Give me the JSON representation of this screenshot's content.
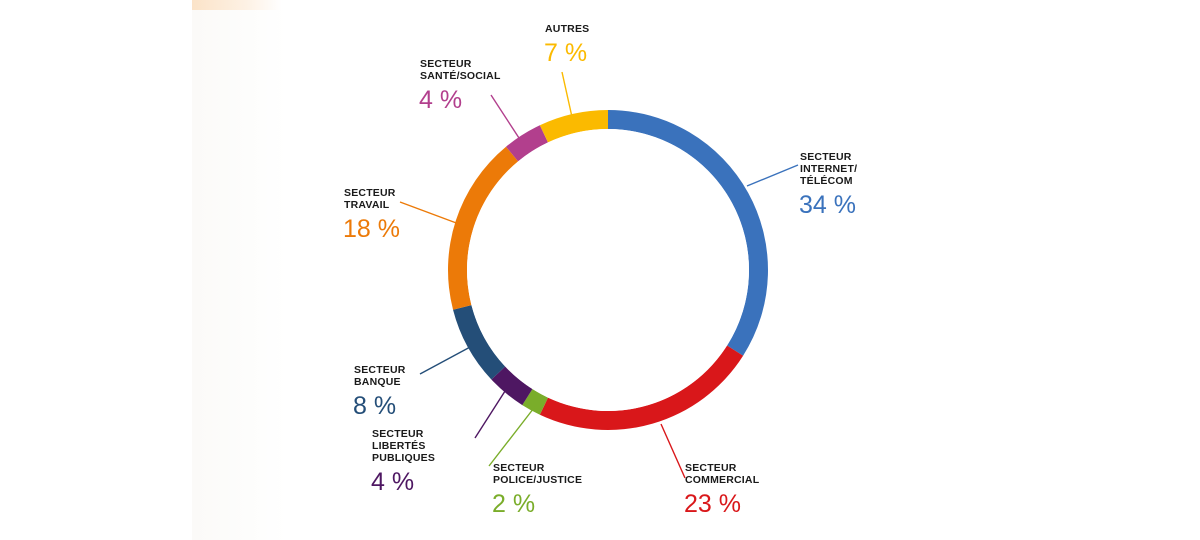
{
  "chart_data": {
    "type": "pie",
    "variant": "donut",
    "title": "",
    "slices": [
      {
        "key": "internet",
        "lines": [
          "SECTEUR",
          "INTERNET/",
          "TÉLÉCOM"
        ],
        "value": 34,
        "label": "34 %",
        "color": "#3a72bc"
      },
      {
        "key": "commercial",
        "lines": [
          "SECTEUR",
          "COMMERCIAL"
        ],
        "value": 23,
        "label": "23 %",
        "color": "#d9171a"
      },
      {
        "key": "police",
        "lines": [
          "SECTEUR",
          "POLICE/JUSTICE"
        ],
        "value": 2,
        "label": "2 %",
        "color": "#7aad2a"
      },
      {
        "key": "libertes",
        "lines": [
          "SECTEUR",
          "LIBERTÉS",
          "PUBLIQUES"
        ],
        "value": 4,
        "label": "4 %",
        "color": "#4e1762"
      },
      {
        "key": "banque",
        "lines": [
          "SECTEUR",
          "BANQUE"
        ],
        "value": 8,
        "label": "8 %",
        "color": "#244e78"
      },
      {
        "key": "travail",
        "lines": [
          "SECTEUR",
          "TRAVAIL"
        ],
        "value": 18,
        "label": "18 %",
        "color": "#ec7a08"
      },
      {
        "key": "sante",
        "lines": [
          "SECTEUR",
          "SANTÉ/SOCIAL"
        ],
        "value": 4,
        "label": "4 %",
        "color": "#b23f8d"
      },
      {
        "key": "autres",
        "lines": [
          "AUTRES"
        ],
        "value": 7,
        "label": "7 %",
        "color": "#fbba00"
      }
    ],
    "start_angle_deg": 0,
    "direction": "clockwise",
    "legend": "none"
  }
}
